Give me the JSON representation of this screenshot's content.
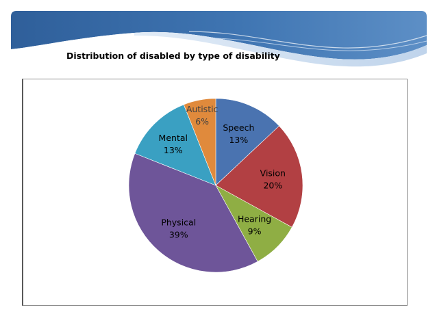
{
  "slide": {
    "title": "Distribution of disabled by type of disability"
  },
  "colors": {
    "banner_dark": "#3e6da6",
    "banner_light": "#8fb6dd"
  },
  "chart_data": {
    "type": "pie",
    "categories": [
      "Speech",
      "Vision",
      "Hearing",
      "Physical",
      "Mental",
      "Autistic"
    ],
    "values": [
      13,
      20,
      9,
      39,
      13,
      6
    ],
    "value_labels": [
      "13%",
      "20%",
      "9%",
      "39%",
      "13%",
      "6%"
    ],
    "colors": [
      "#4a73b0",
      "#b24043",
      "#8fae44",
      "#6e5599",
      "#3aa0c2",
      "#e08a3c"
    ],
    "label_colors": [
      "#000000",
      "#000000",
      "#000000",
      "#000000",
      "#000000",
      "#404040"
    ],
    "legend": "none"
  }
}
